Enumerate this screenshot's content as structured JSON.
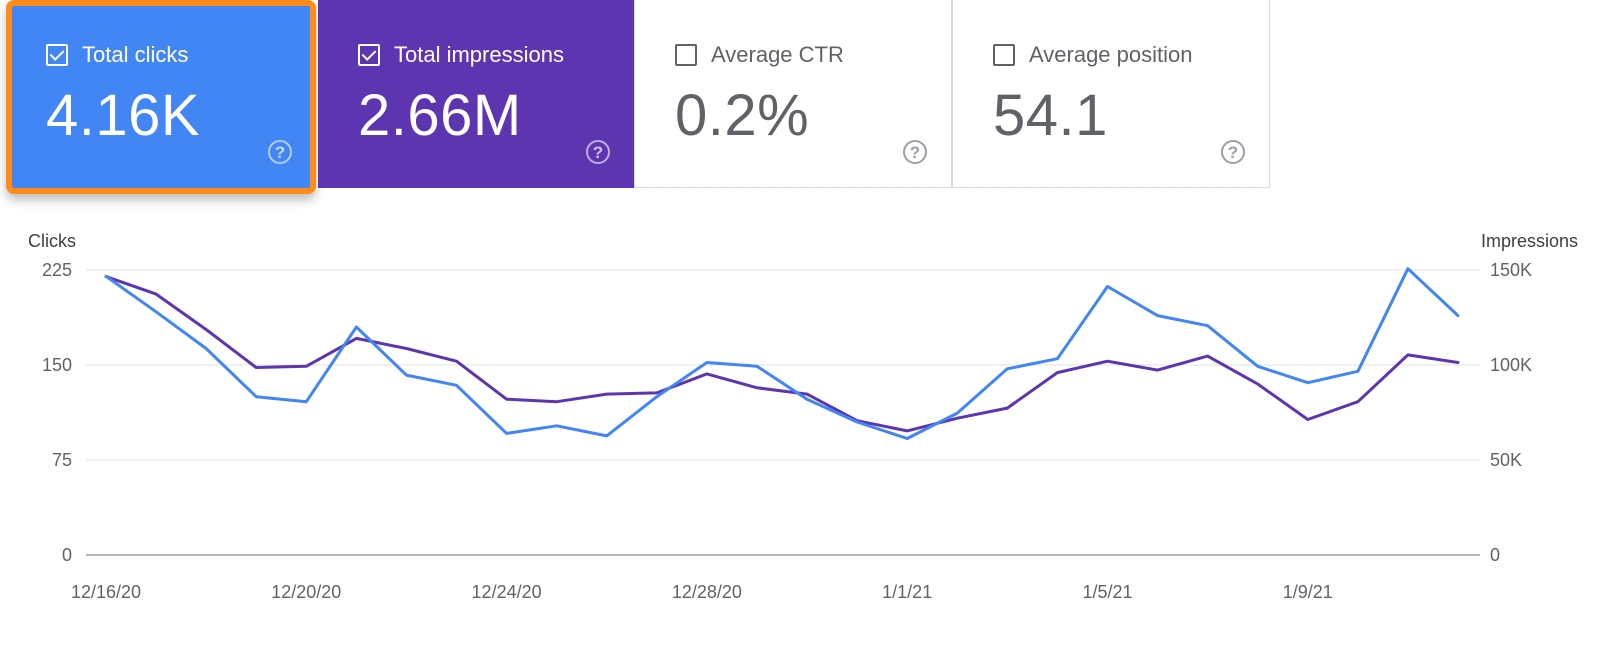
{
  "colors": {
    "clicks": "#4285f4",
    "impressions": "#5e35b1",
    "highlight": "#ff8c1a"
  },
  "cards": [
    {
      "label": "Total clicks",
      "value": "4.16K",
      "checked": true,
      "help_icon": "question-circle-icon"
    },
    {
      "label": "Total impressions",
      "value": "2.66M",
      "checked": true,
      "help_icon": "question-circle-icon"
    },
    {
      "label": "Average CTR",
      "value": "0.2%",
      "checked": false,
      "help_icon": "question-circle-icon"
    },
    {
      "label": "Average position",
      "value": "54.1",
      "checked": false,
      "help_icon": "question-circle-icon"
    }
  ],
  "help_glyph": "?",
  "chart_data": {
    "type": "line",
    "title": "",
    "ylabel": "Clicks",
    "y2label": "Impressions",
    "ylim": [
      0,
      225
    ],
    "y2lim": [
      0,
      150000
    ],
    "y_ticks": [
      "0",
      "75",
      "150",
      "225"
    ],
    "y2_ticks": [
      "0",
      "50K",
      "100K",
      "150K"
    ],
    "x": [
      "12/16/20",
      "12/17/20",
      "12/18/20",
      "12/19/20",
      "12/20/20",
      "12/21/20",
      "12/22/20",
      "12/23/20",
      "12/24/20",
      "12/25/20",
      "12/26/20",
      "12/27/20",
      "12/28/20",
      "12/29/20",
      "12/30/20",
      "12/31/20",
      "1/1/21",
      "1/2/21",
      "1/3/21",
      "1/4/21",
      "1/5/21",
      "1/6/21",
      "1/7/21",
      "1/8/21",
      "1/9/21",
      "1/10/21",
      "1/11/21",
      "1/12/21"
    ],
    "x_tick_labels": [
      "12/16/20",
      "12/20/20",
      "12/24/20",
      "12/28/20",
      "1/1/21",
      "1/5/21",
      "1/9/21"
    ],
    "grid": true,
    "series": [
      {
        "name": "Clicks",
        "axis": "left",
        "values": [
          220,
          192,
          163,
          125,
          121,
          180,
          142,
          134,
          96,
          102,
          94,
          125,
          152,
          149,
          123,
          105,
          92,
          112,
          147,
          155,
          212,
          189,
          181,
          149,
          136,
          145,
          226,
          189
        ]
      },
      {
        "name": "Impressions",
        "axis": "right",
        "values": [
          146600,
          137300,
          118700,
          98700,
          99300,
          114000,
          108700,
          102000,
          82000,
          80700,
          84700,
          85300,
          95300,
          88000,
          84700,
          70700,
          65300,
          72000,
          77300,
          96000,
          102000,
          97300,
          104700,
          90000,
          71300,
          80700,
          105300,
          101300
        ]
      }
    ]
  }
}
